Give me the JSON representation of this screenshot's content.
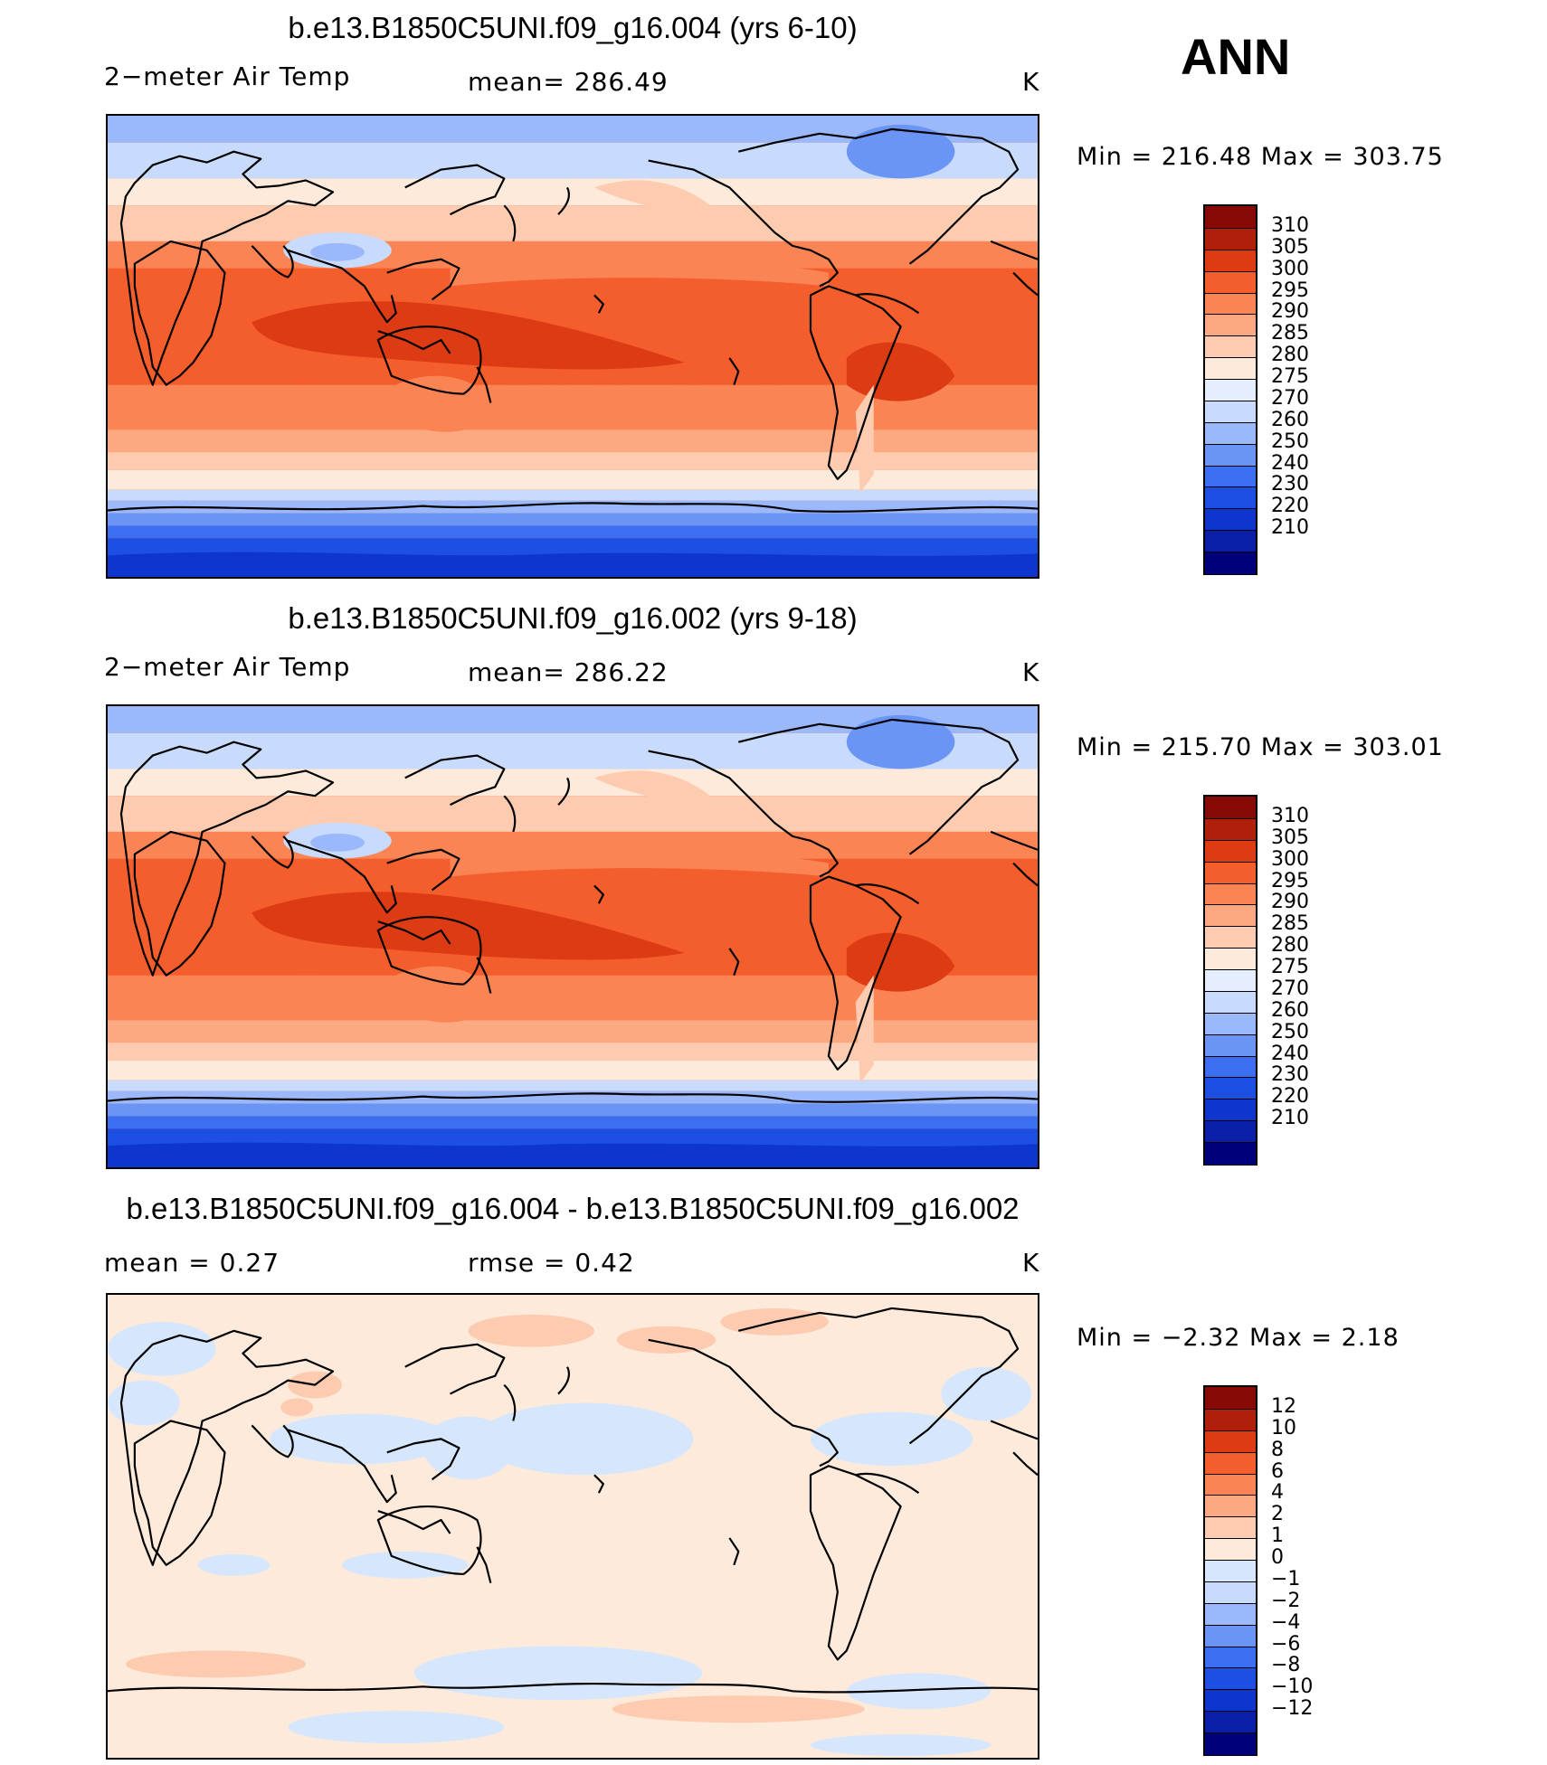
{
  "season": "ANN",
  "colors": {
    "abs": [
      "#00007a",
      "#0a1fa8",
      "#0f35cf",
      "#1d4fe3",
      "#3b6ef0",
      "#6b95f5",
      "#9bb8fa",
      "#c8dbfc",
      "#e4eefd",
      "#fdeadb",
      "#fccbb0",
      "#fca982",
      "#fb8455",
      "#f45d2c",
      "#dd3b14",
      "#b01f0a",
      "#870a05"
    ],
    "diff": [
      "#00007a",
      "#0a1fa8",
      "#0f35cf",
      "#1d4fe3",
      "#3b6ef0",
      "#6b95f5",
      "#9bb8fa",
      "#c8dbfc",
      "#d6e7fd",
      "#fdeadb",
      "#fccbb0",
      "#fca982",
      "#fb8455",
      "#f45d2c",
      "#dd3b14",
      "#b01f0a",
      "#870a05"
    ]
  },
  "panels": [
    {
      "title": "b.e13.B1850C5UNI.f09_g16.004 (yrs 6-10)",
      "left_label": "2−meter Air Temp",
      "center_label": "mean=  286.49",
      "units": "K",
      "min_max": "Min  =  216.48  Max  =  303.75",
      "colorbar_labels": [
        "310",
        "305",
        "300",
        "295",
        "290",
        "285",
        "280",
        "275",
        "270",
        "260",
        "250",
        "240",
        "230",
        "220",
        "210"
      ]
    },
    {
      "title": "b.e13.B1850C5UNI.f09_g16.002 (yrs 9-18)",
      "left_label": "2−meter Air Temp",
      "center_label": "mean=  286.22",
      "units": "K",
      "min_max": "Min  =  215.70  Max  =  303.01",
      "colorbar_labels": [
        "310",
        "305",
        "300",
        "295",
        "290",
        "285",
        "280",
        "275",
        "270",
        "260",
        "250",
        "240",
        "230",
        "220",
        "210"
      ]
    },
    {
      "title": "b.e13.B1850C5UNI.f09_g16.004 - b.e13.B1850C5UNI.f09_g16.002",
      "left_label": "mean  =     0.27",
      "center_label": "rmse  =     0.42",
      "units": "K",
      "min_max": "Min  =     −2.32  Max  =      2.18",
      "colorbar_labels": [
        "12",
        "10",
        "8",
        "6",
        "4",
        "2",
        "1",
        "0",
        "−1",
        "−2",
        "−4",
        "−6",
        "−8",
        "−10",
        "−12"
      ]
    }
  ]
}
